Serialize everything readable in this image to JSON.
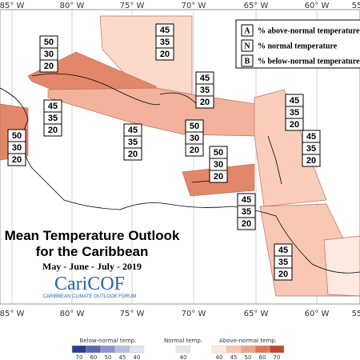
{
  "longitudes_top": [
    "85° W",
    "80° W",
    "75° W",
    "70° W",
    "65° W",
    "60° W",
    "55° W"
  ],
  "longitudes_bottom": [
    "85° W",
    "80° W",
    "75° W",
    "70° W",
    "65° W",
    "60° W",
    "55° W"
  ],
  "legend": [
    {
      "letter": "A",
      "text": "% above-normal temperature"
    },
    {
      "letter": "N",
      "text": "% normal temperature"
    },
    {
      "letter": "B",
      "text": "% below-normal temperature"
    }
  ],
  "regions": [
    {
      "probabilities": [
        45,
        35,
        20
      ]
    },
    {
      "probabilities": [
        50,
        30,
        20
      ]
    },
    {
      "probabilities": [
        45,
        35,
        20
      ]
    },
    {
      "probabilities": [
        45,
        35,
        20
      ]
    },
    {
      "probabilities": [
        45,
        35,
        20
      ]
    },
    {
      "probabilities": [
        50,
        30,
        20
      ]
    },
    {
      "probabilities": [
        45,
        35,
        20
      ]
    },
    {
      "probabilities": [
        50,
        30,
        20
      ]
    },
    {
      "probabilities": [
        45,
        35,
        20
      ]
    },
    {
      "probabilities": [
        50,
        30,
        20
      ]
    },
    {
      "probabilities": [
        45,
        35,
        20
      ]
    },
    {
      "probabilities": [
        45,
        35,
        20
      ]
    }
  ],
  "title": {
    "line1": "Mean Temperature Outlook",
    "line2": "for the Caribbean",
    "period": "May - June - July - 2019",
    "logo": "CariCOF",
    "logo_subtitle": "CARIBBEAN CLIMATE OUTLOOK FORUM"
  },
  "colorbar": {
    "below": {
      "label": "Below-normal temp.",
      "ticks": [
        70,
        60,
        50,
        45,
        40
      ]
    },
    "normal": {
      "label": "Normal temp.",
      "ticks": [
        40
      ]
    },
    "above": {
      "label": "Above-normal temp.",
      "ticks": [
        40,
        45,
        50,
        60,
        70
      ]
    }
  }
}
